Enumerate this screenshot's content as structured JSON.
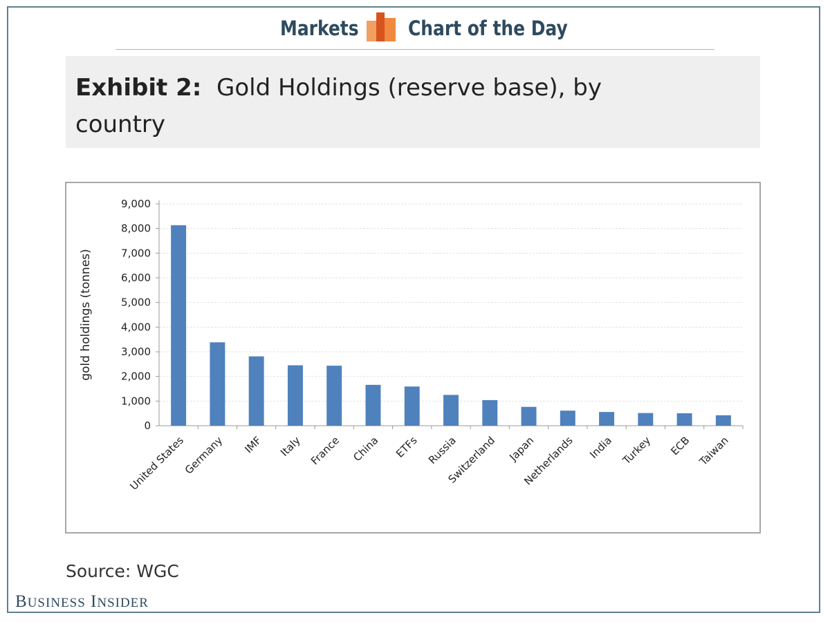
{
  "header": {
    "left_text": "Markets",
    "right_text": "Chart of the Day",
    "logo_icon": "bar-chart-logo-icon"
  },
  "exhibit": {
    "label": "Exhibit 2:",
    "title": "Gold Holdings (reserve base), by country"
  },
  "source": "Source: WGC",
  "brand": {
    "first_initial": "B",
    "first_rest": "USINESS",
    "second_initial": "I",
    "second_rest": "NSIDER"
  },
  "colors": {
    "bar": "#4f81bd",
    "header_text": "#2e4a5e",
    "logo_orange": "#f0a060",
    "logo_red": "#d9531e"
  },
  "chart_data": {
    "type": "bar",
    "title": "",
    "xlabel": "",
    "ylabel": "gold holdings (tonnes)",
    "ylim": [
      0,
      9000
    ],
    "yticks": [
      0,
      1000,
      2000,
      3000,
      4000,
      5000,
      6000,
      7000,
      8000,
      9000
    ],
    "ytick_labels": [
      "0",
      "1,000",
      "2,000",
      "3,000",
      "4,000",
      "5,000",
      "6,000",
      "7,000",
      "8,000",
      "9,000"
    ],
    "grid": true,
    "categories": [
      "United States",
      "Germany",
      "IMF",
      "Italy",
      "France",
      "China",
      "ETFs",
      "Russia",
      "Switzerland",
      "Japan",
      "Netherlands",
      "India",
      "Turkey",
      "ECB",
      "Taiwan"
    ],
    "values": [
      8134,
      3384,
      2814,
      2452,
      2435,
      1658,
      1590,
      1250,
      1040,
      765,
      612,
      558,
      515,
      505,
      424
    ]
  }
}
